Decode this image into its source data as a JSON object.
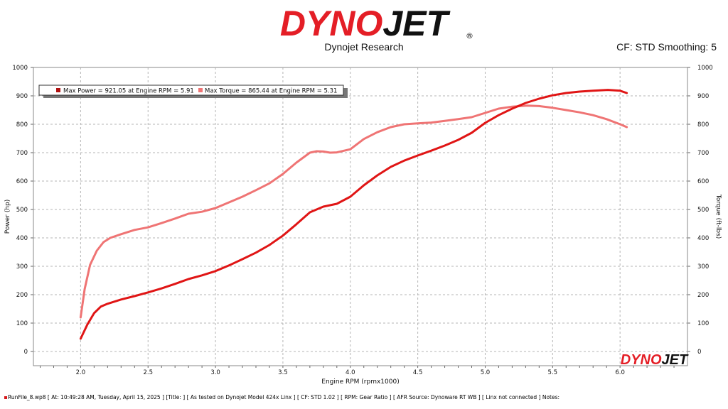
{
  "header": {
    "logo_text": "DYNOJET",
    "logo_registered": "®",
    "subtitle": "Dynojet Research",
    "cf_info": "CF: STD Smoothing: 5",
    "watermark_text": "DYNOJET"
  },
  "footer": {
    "text": "RunFile_8.wp8 [ At: 10:49:28 AM, Tuesday, April 15, 2025 ] [Title: ] [ As tested on Dynojet Model 424x Linx ] [ CF: STD 1.02 ] [ RPM: Gear Ratio ] [ AFR Source: Dynoware RT WB ] [ Linx not connected ] Notes:"
  },
  "colors": {
    "power": "#e01515",
    "torque": "#ef7474",
    "logo_red": "#e41e26",
    "logo_black": "#111111"
  },
  "chart_data": {
    "type": "line",
    "xlabel": "Engine RPM (rpmx1000)",
    "ylabel": "Power (hp)",
    "y2label": "Torque (ft-lbs)",
    "xlim": [
      1.65,
      6.5
    ],
    "ylim": [
      -50,
      1000
    ],
    "y2lim": [
      -50,
      1000
    ],
    "x_ticks": [
      "2.0",
      "2.5",
      "3.0",
      "3.5",
      "4.0",
      "4.5",
      "5.0",
      "5.5",
      "6.0"
    ],
    "y_ticks": [
      "0",
      "100",
      "200",
      "300",
      "400",
      "500",
      "600",
      "700",
      "800",
      "900",
      "1000"
    ],
    "grid": true,
    "legend": [
      {
        "label": "Max Power = 921.05 at Engine RPM = 5.91",
        "color": "#b01010"
      },
      {
        "label": "Max Torque = 865.44 at Engine RPM = 5.31",
        "color": "#ef7474"
      }
    ],
    "series": [
      {
        "axis": "left",
        "x": [
          2.0,
          2.05,
          2.1,
          2.15,
          2.2,
          2.3,
          2.4,
          2.5,
          2.6,
          2.7,
          2.8,
          2.9,
          3.0,
          3.1,
          3.2,
          3.3,
          3.4,
          3.5,
          3.6,
          3.7,
          3.8,
          3.9,
          4.0,
          4.1,
          4.2,
          4.3,
          4.4,
          4.5,
          4.6,
          4.7,
          4.8,
          4.9,
          5.0,
          5.1,
          5.2,
          5.3,
          5.4,
          5.5,
          5.6,
          5.7,
          5.8,
          5.91,
          6.0,
          6.05
        ],
        "values": [
          45,
          95,
          135,
          158,
          168,
          183,
          195,
          208,
          222,
          238,
          255,
          268,
          283,
          303,
          325,
          348,
          375,
          408,
          448,
          490,
          510,
          520,
          545,
          585,
          620,
          650,
          672,
          690,
          707,
          725,
          745,
          770,
          805,
          832,
          855,
          875,
          890,
          902,
          910,
          915,
          918,
          921.05,
          918,
          910
        ]
      },
      {
        "axis": "right",
        "x": [
          2.0,
          2.03,
          2.07,
          2.12,
          2.17,
          2.22,
          2.3,
          2.4,
          2.5,
          2.6,
          2.7,
          2.8,
          2.9,
          3.0,
          3.1,
          3.2,
          3.3,
          3.4,
          3.5,
          3.6,
          3.7,
          3.75,
          3.8,
          3.85,
          3.9,
          4.0,
          4.1,
          4.2,
          4.3,
          4.4,
          4.5,
          4.6,
          4.7,
          4.8,
          4.9,
          5.0,
          5.1,
          5.2,
          5.31,
          5.4,
          5.5,
          5.6,
          5.7,
          5.8,
          5.9,
          6.0,
          6.05
        ],
        "values": [
          120,
          220,
          305,
          355,
          385,
          400,
          413,
          428,
          437,
          452,
          468,
          485,
          492,
          505,
          525,
          545,
          568,
          592,
          625,
          665,
          700,
          705,
          704,
          700,
          701,
          712,
          748,
          772,
          790,
          800,
          803,
          806,
          812,
          818,
          825,
          840,
          855,
          862,
          865.44,
          864,
          858,
          850,
          842,
          832,
          818,
          800,
          790
        ]
      }
    ]
  }
}
